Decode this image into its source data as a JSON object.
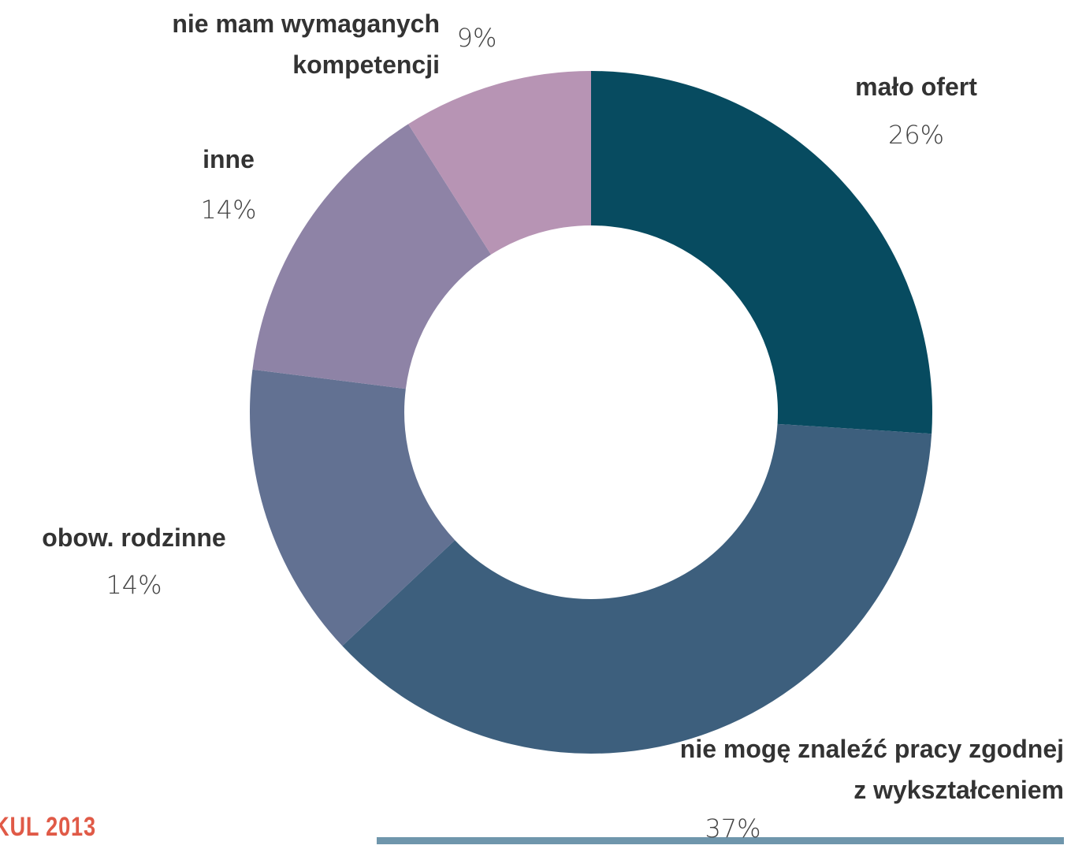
{
  "chart_data": {
    "type": "donut",
    "categories": [
      "mało ofert",
      "nie mogę znaleźć pracy zgodnej z wykształceniem",
      "obow. rodzinne",
      "inne",
      "nie mam wymaganych kompetencji"
    ],
    "values": [
      26,
      37,
      14,
      14,
      9
    ],
    "value_labels": [
      "26%",
      "37%",
      "14%",
      "14%",
      "9%"
    ],
    "colors": [
      "#074b60",
      "#3d5f7d",
      "#627192",
      "#8e83a6",
      "#b794b4"
    ],
    "source": "KUL 2013"
  }
}
